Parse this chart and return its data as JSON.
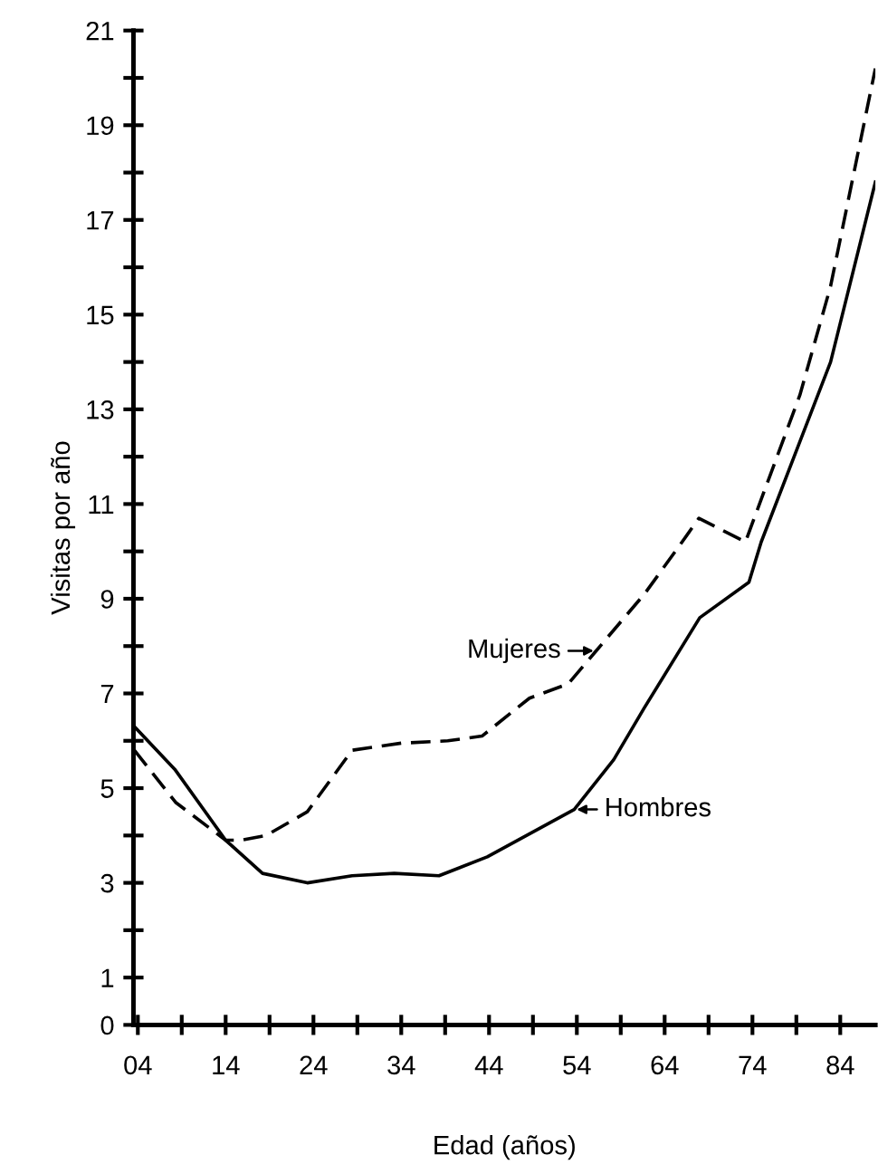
{
  "chart_data": {
    "type": "line",
    "xlabel": "Edad (años)",
    "ylabel": "Visitas por año",
    "xlim": [
      3.5,
      88
    ],
    "ylim": [
      0,
      21
    ],
    "xticks": [
      {
        "value": 4,
        "label": "04"
      },
      {
        "value": 9,
        "label": null
      },
      14,
      {
        "value": 19,
        "label": null
      },
      24,
      {
        "value": 29,
        "label": null
      },
      34,
      {
        "value": 39,
        "label": null
      },
      44,
      {
        "value": 49,
        "label": null
      },
      54,
      {
        "value": 59,
        "label": null
      },
      64,
      {
        "value": 69,
        "label": null
      },
      74,
      {
        "value": 79,
        "label": null
      },
      84
    ],
    "yticks": [
      0,
      1,
      {
        "value": 2,
        "label": null
      },
      3,
      {
        "value": 4,
        "label": null
      },
      5,
      {
        "value": 6,
        "label": null
      },
      7,
      {
        "value": 8,
        "label": null
      },
      9,
      {
        "value": 10,
        "label": null
      },
      11,
      {
        "value": 12,
        "label": null
      },
      13,
      {
        "value": 14,
        "label": null
      },
      15,
      {
        "value": 16,
        "label": null
      },
      17,
      {
        "value": 18,
        "label": null
      },
      19,
      {
        "value": 20,
        "label": null
      },
      21
    ],
    "grid": false,
    "marker": "none",
    "series": [
      {
        "name": "Hombres",
        "color": "#000000",
        "line_style": "solid",
        "x": [
          3.6,
          8.2,
          14,
          18.2,
          23.3,
          28.4,
          33.2,
          38.3,
          43.8,
          53.7,
          58.2,
          61.7,
          68,
          73.6,
          75,
          82.9,
          88
        ],
        "values": [
          6.3,
          5.4,
          3.9,
          3.2,
          3.0,
          3.15,
          3.2,
          3.15,
          3.55,
          4.55,
          5.6,
          6.7,
          8.6,
          9.35,
          10.2,
          14.0,
          17.8
        ]
      },
      {
        "name": "Mujeres",
        "color": "#000000",
        "line_style": "dashed",
        "x": [
          3.6,
          8.3,
          14,
          15.7,
          18.6,
          23.3,
          28.4,
          34,
          39.3,
          43.2,
          48.6,
          53,
          56.2,
          61.7,
          65.8,
          67.9,
          73.2,
          79.4,
          82.9,
          88
        ],
        "values": [
          5.8,
          4.7,
          3.9,
          3.9,
          4.0,
          4.5,
          5.8,
          5.95,
          6.0,
          6.1,
          6.9,
          7.2,
          7.9,
          9.1,
          10.15,
          10.7,
          10.2,
          13.3,
          15.6,
          20.2
        ]
      }
    ]
  }
}
